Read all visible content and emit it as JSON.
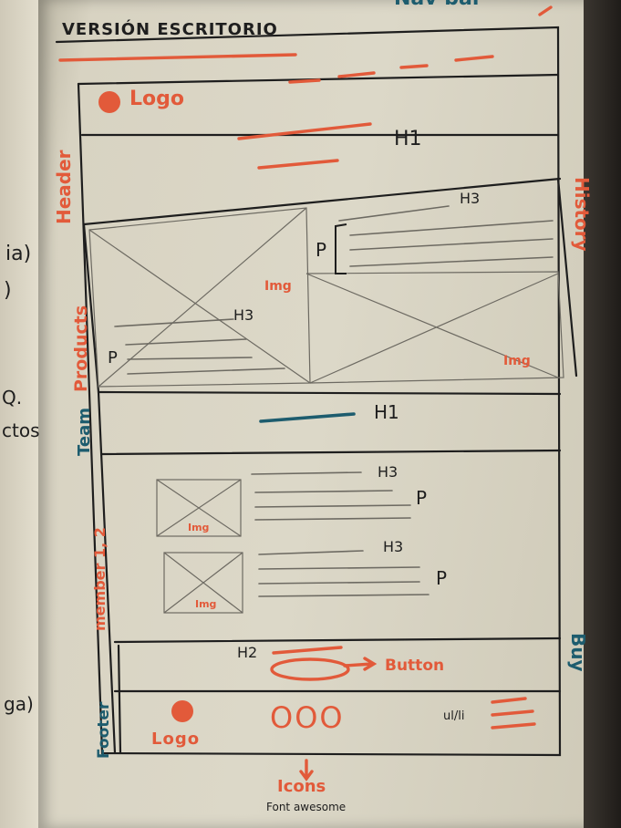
{
  "sketch": {
    "title": "VERSIÓN ESCRITORIO",
    "nav_label": "Nav bar",
    "left_notes": [
      "ia)",
      ")",
      "Q.",
      "ctos",
      "ga)"
    ],
    "header": {
      "section_label": "Header",
      "logo_text": "Logo",
      "h1": "H1"
    },
    "history": {
      "section_label": "History",
      "h3": "H3",
      "p": "P",
      "img": "Img"
    },
    "products": {
      "section_label": "Products",
      "h3": "H3",
      "p": "P",
      "img": "Img"
    },
    "team": {
      "section_label": "Team",
      "h1": "H1"
    },
    "members": {
      "section_label": "member 1, 2",
      "items": [
        {
          "h3": "H3",
          "p": "P",
          "img": "Img"
        },
        {
          "h3": "H3",
          "p": "P",
          "img": "Img"
        }
      ]
    },
    "buy": {
      "section_label": "Buy",
      "h2": "H2",
      "button_note": "Button"
    },
    "footer": {
      "section_label": "Footer",
      "logo_text": "Logo",
      "icons_glyph": "OOO",
      "list_note": "ul/li",
      "icons_note": "Icons",
      "icons_sub": "Font awesome"
    },
    "colors": {
      "ink": "#1e1e1e",
      "orange": "#e25a3a",
      "teal": "#1d5c6e",
      "paper": "#dcd8c8"
    }
  }
}
